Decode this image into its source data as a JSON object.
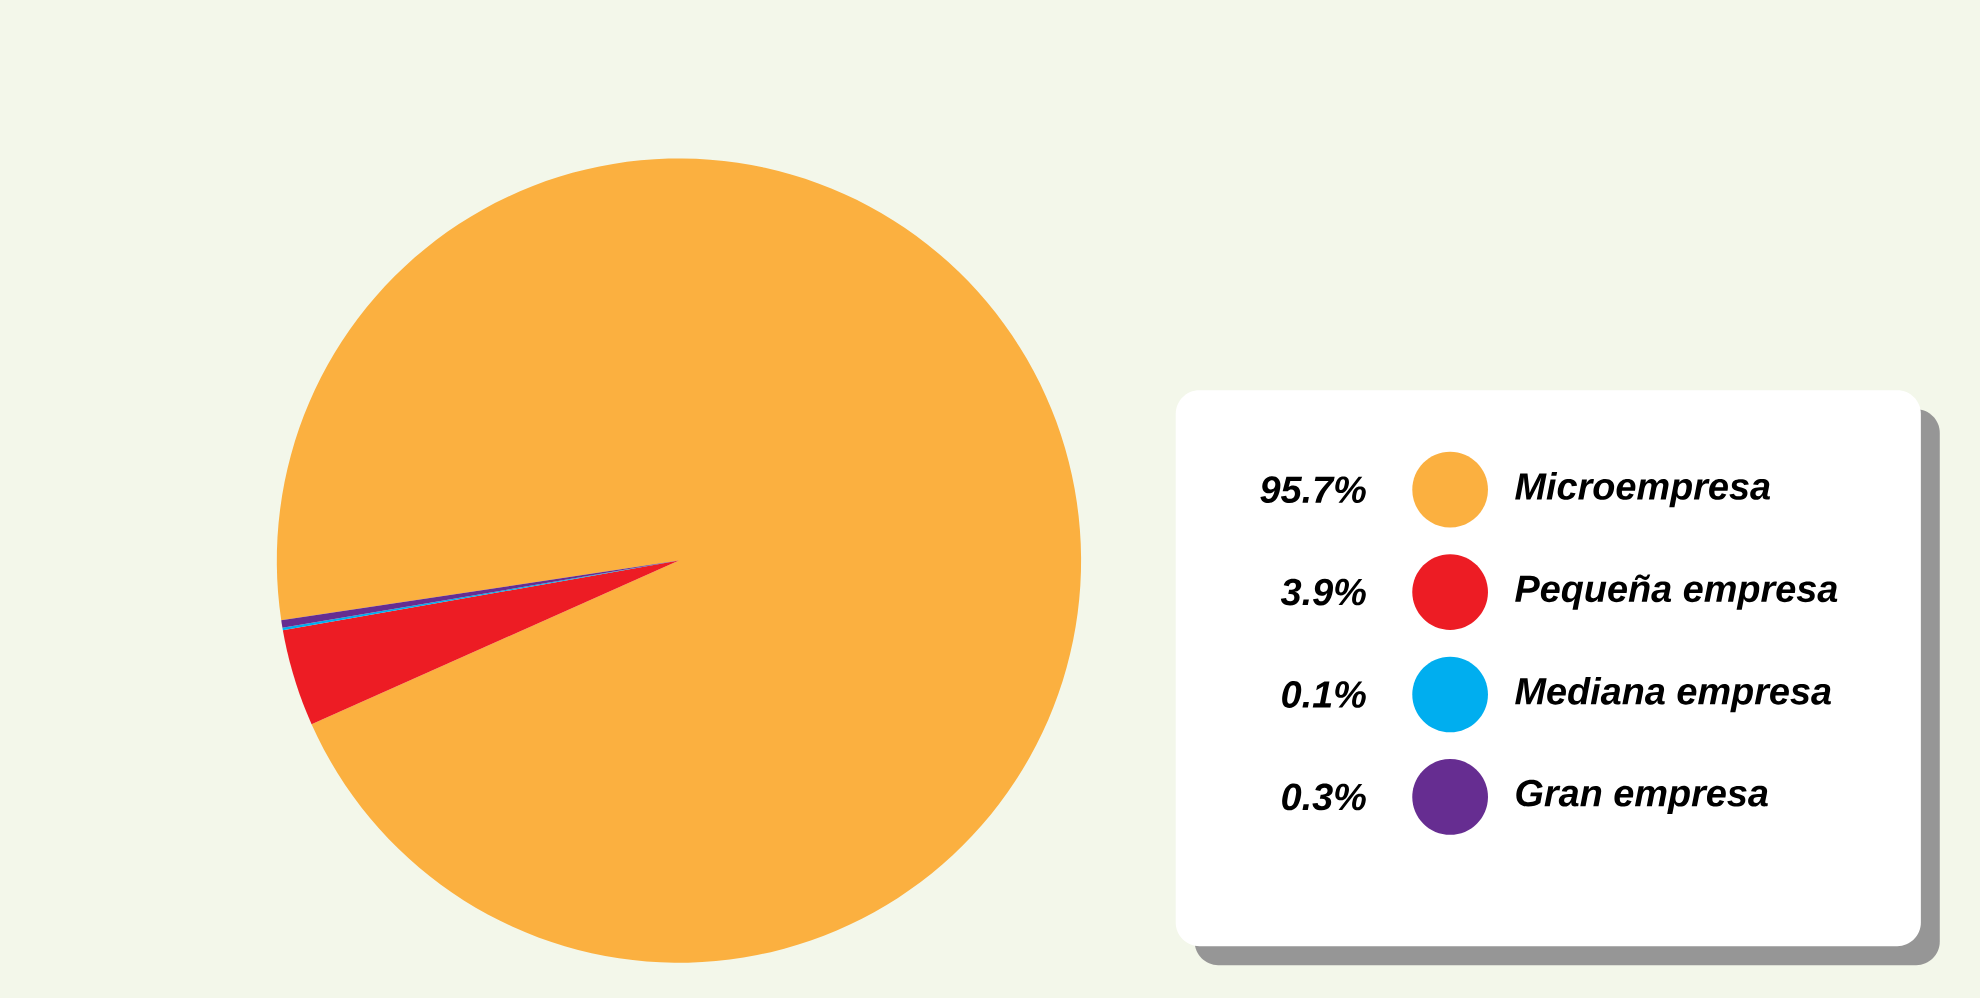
{
  "chart_data": {
    "type": "pie",
    "categories": [
      "Microempresa",
      "Pequeña empresa",
      "Mediana empresa",
      "Gran empresa"
    ],
    "values": [
      95.7,
      3.9,
      0.1,
      0.3
    ],
    "value_labels": [
      "95.7%",
      "3.9%",
      "0.1%",
      "0.3%"
    ],
    "colors": [
      "#fbb040",
      "#ed1c24",
      "#00aeef",
      "#662d91"
    ],
    "legend": "right"
  }
}
